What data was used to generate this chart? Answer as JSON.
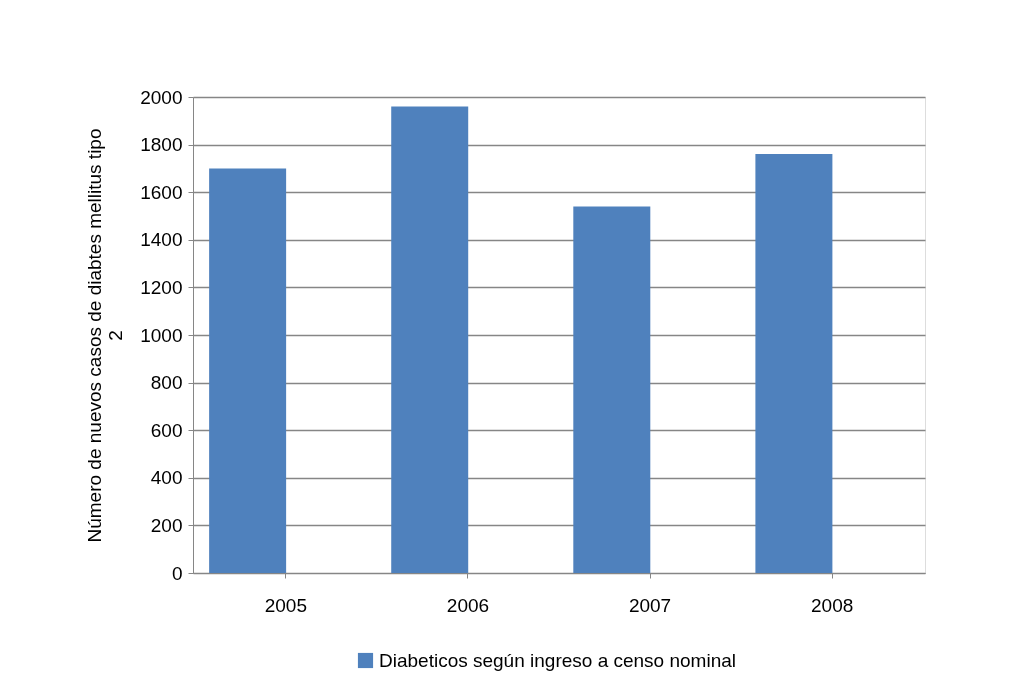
{
  "chart_data": {
    "type": "bar",
    "ylabel": "Número de nuevos casos de diabtes mellitus tipo 2",
    "categories": [
      "2005",
      "2006",
      "2007",
      "2008"
    ],
    "series": [
      {
        "name": "Diabeticos según ingreso a censo nominal",
        "color": "#4f81bd",
        "values": [
          1700,
          1960,
          1540,
          1760
        ]
      }
    ],
    "ylim": [
      0,
      2000
    ],
    "yticks": [
      0,
      200,
      400,
      600,
      800,
      1000,
      1200,
      1400,
      1600,
      1800,
      2000
    ],
    "grid": "y",
    "legend": "bottom"
  }
}
